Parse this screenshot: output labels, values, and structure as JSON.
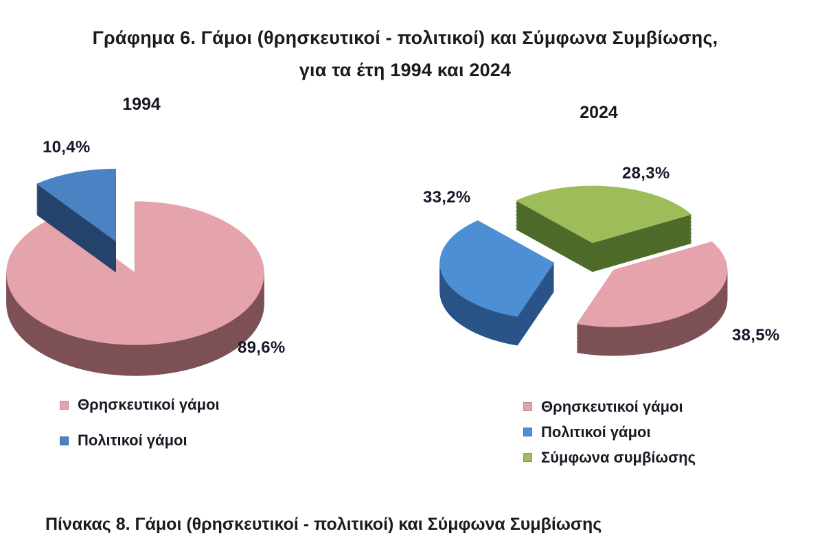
{
  "title": {
    "line1": "Γράφημα 6. Γάμοι (θρησκευτικοί - πολιτικοί) και Σύμφωνα Συμβίωσης,",
    "line2": "για τα έτη 1994 και 2024"
  },
  "footer": {
    "caption": "Πίνακας 8. Γάμοι (θρησκευτικοί - πολιτικοί) και Σύμφωνα Συμβίωσης"
  },
  "chart_data": [
    {
      "type": "pie",
      "title": "1994",
      "labels": [
        "Θρησκευτικοί γάμοι",
        "Πολιτικοί γάμοι"
      ],
      "values": [
        89.6,
        10.4
      ],
      "value_labels": [
        "89,6%",
        "10,4%"
      ],
      "colors": [
        "#e5a3ab",
        "#4a82c4"
      ],
      "side_colors": [
        "#7d5156",
        "#25436b"
      ],
      "exploded": [
        false,
        true
      ],
      "start_angle_deg": 0,
      "style": "3d-exploded-pie",
      "legend_position": "bottom-left"
    },
    {
      "type": "pie",
      "title": "2024",
      "labels": [
        "Θρησκευτικοί γάμοι",
        "Πολιτικοί γάμοι",
        "Σύμφωνα συμβίωσης"
      ],
      "values": [
        38.5,
        33.2,
        28.3
      ],
      "value_labels": [
        "38,5%",
        "33,2%",
        "28,3%"
      ],
      "colors": [
        "#e5a3ab",
        "#4c8fd4",
        "#9cbd59"
      ],
      "side_colors": [
        "#7d5156",
        "#2a5488",
        "#4e6b2a"
      ],
      "exploded": [
        true,
        true,
        true
      ],
      "start_angle_deg": 60,
      "style": "3d-exploded-pie",
      "legend_position": "bottom-right"
    }
  ]
}
